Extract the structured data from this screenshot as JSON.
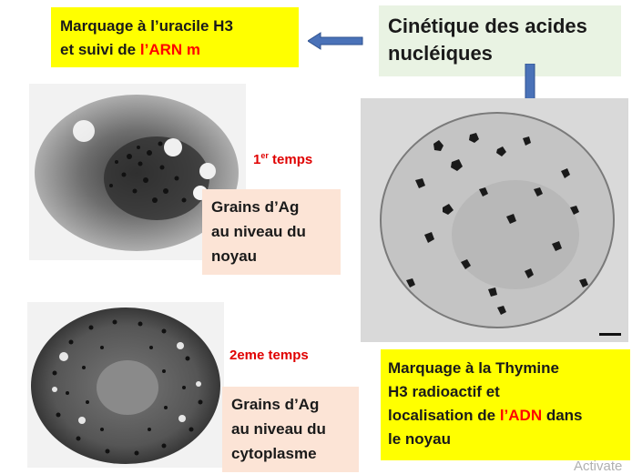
{
  "uracile_box": {
    "line1": "Marquage à l’uracile H3",
    "line2_prefix": "et  suivi de ",
    "line2_red": "l’ARN m"
  },
  "title_box": {
    "line1": "Cinétique des acides",
    "line2": "nucléiques"
  },
  "time1": {
    "number": "1",
    "sup": "er",
    "rest": " temps"
  },
  "grains_noyau": {
    "line1": "Grains d’Ag",
    "line2": "au niveau du",
    "line3": "noyau"
  },
  "time2": {
    "label": "2eme temps"
  },
  "grains_cyto": {
    "line1": "Grains d’Ag",
    "line2": "au niveau  du",
    "line3": "cytoplasme"
  },
  "thymine_box": {
    "line1": "Marquage à la Thymine",
    "line2": "H3 radioactif et",
    "line3_prefix": "localisation de ",
    "line3_red": "l’ADN",
    "line3_suffix": "  dans",
    "line4": "le noyau"
  },
  "watermark": "Activate",
  "colors": {
    "yellow": "#ffff00",
    "mint": "#e9f3e3",
    "peach": "#fce4d6",
    "red": "#ff0000",
    "arrow": "#4a72b8"
  }
}
